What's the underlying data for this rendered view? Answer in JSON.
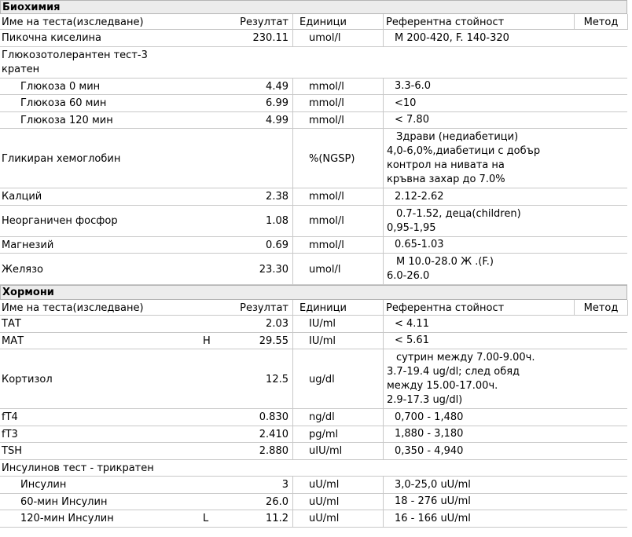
{
  "sections": [
    {
      "title": "Биохимия",
      "header": {
        "name": "Име на теста(изследване)",
        "result": "Резултат",
        "units": "Единици",
        "reference": "Референтна стойност",
        "method": "Метод"
      },
      "rows": [
        {
          "name": "Пикочна киселина",
          "result": "230.11",
          "units": "umol/l",
          "reference": [
            "М 200-420, F. 140-320"
          ]
        },
        {
          "name": [
            "Глюкозотолерантен тест-3",
            "кратен"
          ],
          "rows": [
            {
              "name": "Глюкоза 0 мин",
              "result": "4.49",
              "units": "mmol/l",
              "reference": [
                "3.3-6.0"
              ]
            },
            {
              "name": "Глюкоза 60 мин",
              "result": "6.99",
              "units": "mmol/l",
              "reference": [
                "<10"
              ]
            },
            {
              "name": "Глюкоза 120 мин",
              "result": "4.99",
              "units": "mmol/l",
              "reference": [
                "< 7.80"
              ]
            }
          ]
        },
        {
          "name": "Гликиран хемоглобин",
          "units": "%(NGSP)",
          "reference": [
            "Здрави (недиабетици)",
            "4,0-6,0%,диабетици с добър",
            "контрол на нивата на",
            "кръвна захар до 7.0%"
          ]
        },
        {
          "name": "Калций",
          "result": "2.38",
          "units": "mmol/l",
          "reference": [
            "2.12-2.62"
          ]
        },
        {
          "name": "Неорганичен фосфор",
          "result": "1.08",
          "units": "mmol/l",
          "reference": [
            "0.7-1.52, деца(children)",
            "0,95-1,95"
          ]
        },
        {
          "name": "Магнезий",
          "result": "0.69",
          "units": "mmol/l",
          "reference": [
            "0.65-1.03"
          ]
        },
        {
          "name": "Желязо",
          "result": "23.30",
          "units": "umol/l",
          "reference": [
            "М 10.0-28.0 Ж .(F.)",
            "6.0-26.0"
          ]
        }
      ]
    },
    {
      "title": "Хормони",
      "header": {
        "name": "Име на теста(изследване)",
        "result": "Резултат",
        "units": "Единици",
        "reference": "Референтна стойност",
        "method": "Метод"
      },
      "rows": [
        {
          "name": "ТАТ",
          "result": "2.03",
          "units": "IU/ml",
          "reference": [
            "< 4.11"
          ]
        },
        {
          "name": "МАТ",
          "flag": "H",
          "result": "29.55",
          "units": "IU/ml",
          "reference": [
            "< 5.61"
          ]
        },
        {
          "name": "Кортизол",
          "result": "12.5",
          "units": "ug/dl",
          "reference": [
            "сутрин между 7.00-9.00ч.",
            "3.7-19.4 ug/dl; след обяд",
            "между 15.00-17.00ч.",
            "2.9-17.3 ug/dl)"
          ]
        },
        {
          "name": "fT4",
          "result": "0.830",
          "units": "ng/dl",
          "reference": [
            "0,700 - 1,480"
          ]
        },
        {
          "name": "fT3",
          "result": "2.410",
          "units": "pg/ml",
          "reference": [
            "1,880 - 3,180"
          ]
        },
        {
          "name": "TSH",
          "result": "2.880",
          "units": "uIU/ml",
          "reference": [
            "0,350 - 4,940"
          ]
        },
        {
          "name": "Инсулинов тест - трикратен",
          "rows": [
            {
              "name": "Инсулин",
              "result": "3",
              "units": "uU/ml",
              "reference": [
                "3,0-25,0 uU/ml"
              ]
            },
            {
              "name": "60-мин Инсулин",
              "result": "26.0",
              "units": "uU/ml",
              "reference": [
                "18 - 276 uU/ml"
              ]
            },
            {
              "name": "120-мин Инсулин",
              "flag": "L",
              "result": "11.2",
              "units": "uU/ml",
              "reference": [
                "16 - 166 uU/ml"
              ]
            }
          ]
        }
      ]
    }
  ]
}
